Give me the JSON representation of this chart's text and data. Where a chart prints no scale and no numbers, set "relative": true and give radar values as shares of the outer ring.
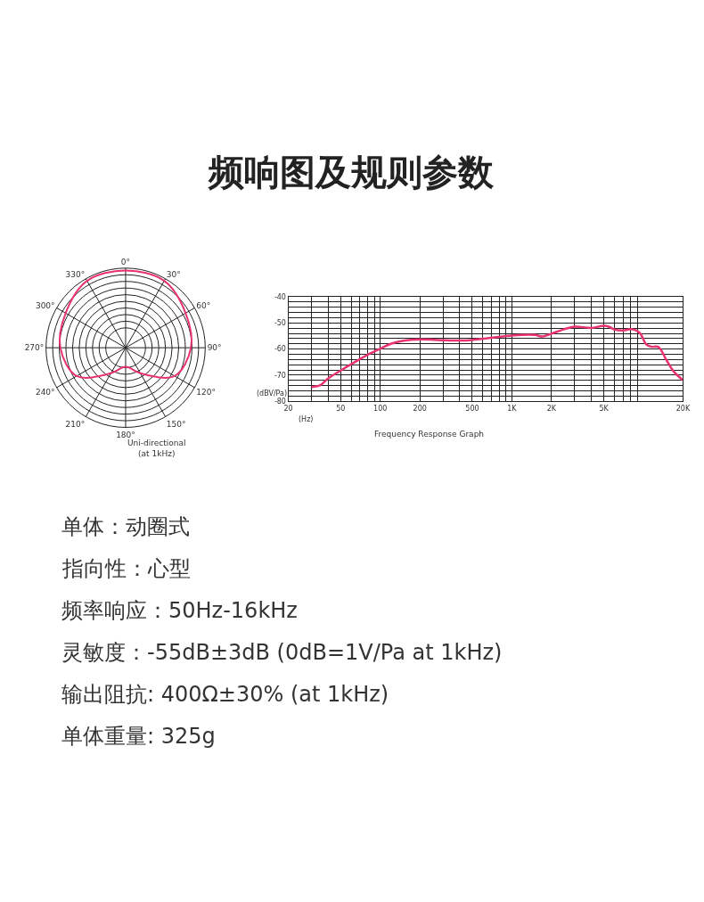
{
  "chart_data": [
    {
      "type": "radar",
      "title": "频响图及规则参数",
      "xlabel": "Uni-directional\n(at 1kHz)",
      "relative": true,
      "grid": true,
      "categories": [
        "0°",
        "30°",
        "60°",
        "90°",
        "120°",
        "150°",
        "180°",
        "210°",
        "240°",
        "270°",
        "300°",
        "330°"
      ],
      "series": [
        {
          "color": "#e8336d",
          "values": [
            0.97,
            0.97,
            0.87,
            0.82,
            0.71,
            0.37,
            0.24,
            0.37,
            0.71,
            0.82,
            0.87,
            0.97
          ]
        }
      ]
    },
    {
      "type": "line",
      "xlabel": "Frequency Response Graph",
      "ylabel": "(dBV/Pa)",
      "annotations": [
        "(Hz)"
      ],
      "log": "x",
      "grid": true,
      "marker": "none",
      "line_style": "solid",
      "xlim": [
        20,
        20000
      ],
      "ylim": [
        -80,
        -40
      ],
      "xticks": [
        20,
        {
          "value": 30,
          "label": null
        },
        {
          "value": 40,
          "label": null
        },
        50,
        {
          "value": 60,
          "label": null
        },
        {
          "value": 70,
          "label": null
        },
        {
          "value": 80,
          "label": null
        },
        {
          "value": 90,
          "label": null
        },
        100,
        200,
        {
          "value": 300,
          "label": null
        },
        {
          "value": 400,
          "label": null
        },
        500,
        {
          "value": 600,
          "label": null
        },
        {
          "value": 700,
          "label": null
        },
        {
          "value": 800,
          "label": null
        },
        {
          "value": 900,
          "label": null
        },
        {
          "value": 1000,
          "label": "1K"
        },
        {
          "value": 2000,
          "label": "2K"
        },
        {
          "value": 3000,
          "label": null
        },
        {
          "value": 4000,
          "label": null
        },
        {
          "value": 5000,
          "label": "5K"
        },
        {
          "value": 6000,
          "label": null
        },
        {
          "value": 7000,
          "label": null
        },
        {
          "value": 8000,
          "label": null
        },
        {
          "value": 9000,
          "label": null
        },
        {
          "value": 20000,
          "label": "20K"
        }
      ],
      "yticks": [
        -80,
        {
          "value": -78,
          "label": null
        },
        {
          "value": -76,
          "label": null
        },
        {
          "value": -74,
          "label": null
        },
        {
          "value": -72,
          "label": null
        },
        -70,
        {
          "value": -68,
          "label": null
        },
        {
          "value": -66,
          "label": null
        },
        {
          "value": -64,
          "label": null
        },
        {
          "value": -62,
          "label": null
        },
        -60,
        {
          "value": -58,
          "label": null
        },
        {
          "value": -56,
          "label": null
        },
        {
          "value": -54,
          "label": null
        },
        {
          "value": -52,
          "label": null
        },
        -50,
        {
          "value": -48,
          "label": null
        },
        {
          "value": -46,
          "label": null
        },
        {
          "value": -44,
          "label": null
        },
        {
          "value": -42,
          "label": null
        },
        -40
      ],
      "x": [
        30,
        35,
        40,
        50,
        60,
        80,
        100,
        120,
        150,
        200,
        300,
        400,
        500,
        700,
        1000,
        1500,
        1700,
        2000,
        2500,
        3000,
        4000,
        5000,
        5500,
        6000,
        7000,
        8000,
        9000,
        9600,
        10500,
        11500,
        13000,
        15000,
        17000,
        20000
      ],
      "series": [
        {
          "color": "#e8336d",
          "values": [
            -74.5,
            -73.8,
            -71.3,
            -68.2,
            -65.8,
            -62.2,
            -59.8,
            -58.0,
            -56.8,
            -56.3,
            -56.6,
            -56.7,
            -56.5,
            -55.7,
            -54.8,
            -54.6,
            -55.2,
            -54.1,
            -52.4,
            -51.4,
            -51.9,
            -51.1,
            -51.5,
            -52.5,
            -52.9,
            -52.4,
            -53.1,
            -54.5,
            -58.2,
            -59.1,
            -59.2,
            -64.3,
            -68.6,
            -71.9
          ]
        }
      ]
    },
    {
      "type": "other",
      "annotations": [
        "单体：动圈式",
        "指向性：心型",
        "频率响应：50Hz-16kHz",
        "灵敏度：-55dB±3dB (0dB=1V/Pa at 1kHz)",
        "输出阻抗: 400Ω±30% (at 1kHz)",
        "单体重量: 325g"
      ]
    }
  ]
}
